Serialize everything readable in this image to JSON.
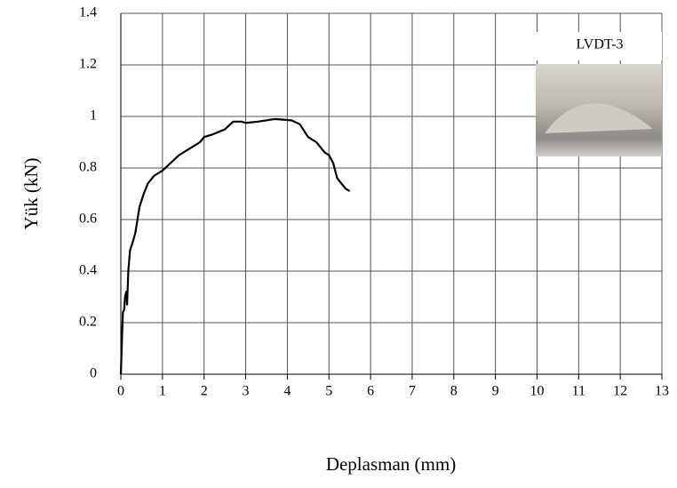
{
  "chart_data": {
    "type": "line",
    "xlabel": "Deplasman (mm)",
    "ylabel": "Yük (kN)",
    "annotation": "LVDT-3",
    "x": [
      0,
      0.02,
      0.05,
      0.08,
      0.1,
      0.13,
      0.15,
      0.18,
      0.22,
      0.3,
      0.35,
      0.4,
      0.45,
      0.55,
      0.65,
      0.8,
      1,
      1.2,
      1.4,
      1.6,
      1.8,
      1.9,
      2,
      2.2,
      2.5,
      2.7,
      2.9,
      3,
      3.3,
      3.7,
      4.1,
      4.3,
      4.5,
      4.7,
      4.9,
      5,
      5.1,
      5.2,
      5.3,
      5.4,
      5.5
    ],
    "series": [
      {
        "color": "#000000",
        "values": [
          0,
          0.1,
          0.24,
          0.25,
          0.3,
          0.32,
          0.27,
          0.4,
          0.48,
          0.52,
          0.55,
          0.6,
          0.65,
          0.7,
          0.74,
          0.77,
          0.79,
          0.82,
          0.85,
          0.87,
          0.89,
          0.9,
          0.92,
          0.93,
          0.95,
          0.98,
          0.98,
          0.975,
          0.98,
          0.99,
          0.985,
          0.97,
          0.92,
          0.9,
          0.86,
          0.85,
          0.82,
          0.76,
          0.74,
          0.72,
          0.71
        ]
      }
    ],
    "xlim": [
      0,
      13
    ],
    "xticks": [
      0,
      1,
      2,
      3,
      4,
      5,
      6,
      7,
      8,
      9,
      10,
      11,
      12,
      13
    ],
    "ylim": [
      0,
      1.4
    ],
    "yticks": [
      0,
      0.2,
      0.4,
      0.6,
      0.8,
      1,
      1.2,
      1.4
    ],
    "grid": true
  }
}
